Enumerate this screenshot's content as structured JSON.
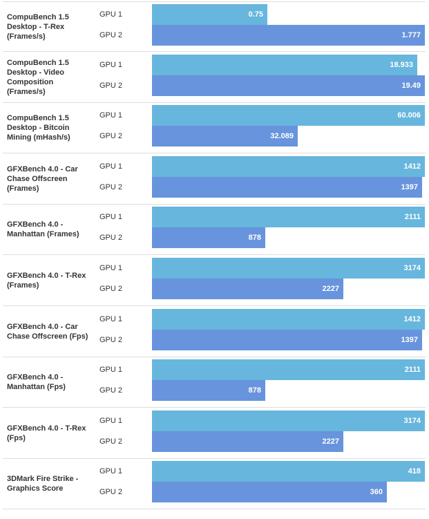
{
  "colors": {
    "gpu1": "#67b6dd",
    "gpu2": "#6794dc"
  },
  "chart_data": {
    "type": "bar",
    "orientation": "horizontal",
    "series_labels": [
      "GPU 1",
      "GPU 2"
    ],
    "benchmarks": [
      {
        "title": "CompuBench 1.5 Desktop - T-Rex (Frames/s)",
        "gpu1": 0.75,
        "gpu2": 1.777,
        "gpu1_label": "0.75",
        "gpu2_label": "1.777"
      },
      {
        "title": "CompuBench 1.5 Desktop - Video Composition (Frames/s)",
        "gpu1": 18.933,
        "gpu2": 19.49,
        "gpu1_label": "18.933",
        "gpu2_label": "19.49"
      },
      {
        "title": "CompuBench 1.5 Desktop - Bitcoin Mining (mHash/s)",
        "gpu1": 60.006,
        "gpu2": 32.089,
        "gpu1_label": "60.006",
        "gpu2_label": "32.089"
      },
      {
        "title": "GFXBench 4.0 - Car Chase Offscreen (Frames)",
        "gpu1": 1412,
        "gpu2": 1397,
        "gpu1_label": "1412",
        "gpu2_label": "1397"
      },
      {
        "title": "GFXBench 4.0 - Manhattan (Frames)",
        "gpu1": 2111,
        "gpu2": 878,
        "gpu1_label": "2111",
        "gpu2_label": "878"
      },
      {
        "title": "GFXBench 4.0 - T-Rex (Frames)",
        "gpu1": 3174,
        "gpu2": 2227,
        "gpu1_label": "3174",
        "gpu2_label": "2227"
      },
      {
        "title": "GFXBench 4.0 - Car Chase Offscreen (Fps)",
        "gpu1": 1412,
        "gpu2": 1397,
        "gpu1_label": "1412",
        "gpu2_label": "1397"
      },
      {
        "title": "GFXBench 4.0 - Manhattan (Fps)",
        "gpu1": 2111,
        "gpu2": 878,
        "gpu1_label": "2111",
        "gpu2_label": "878"
      },
      {
        "title": "GFXBench 4.0 - T-Rex (Fps)",
        "gpu1": 3174,
        "gpu2": 2227,
        "gpu1_label": "3174",
        "gpu2_label": "2227"
      },
      {
        "title": "3DMark Fire Strike - Graphics Score",
        "gpu1": 418,
        "gpu2": 360,
        "gpu1_label": "418",
        "gpu2_label": "360"
      }
    ]
  }
}
